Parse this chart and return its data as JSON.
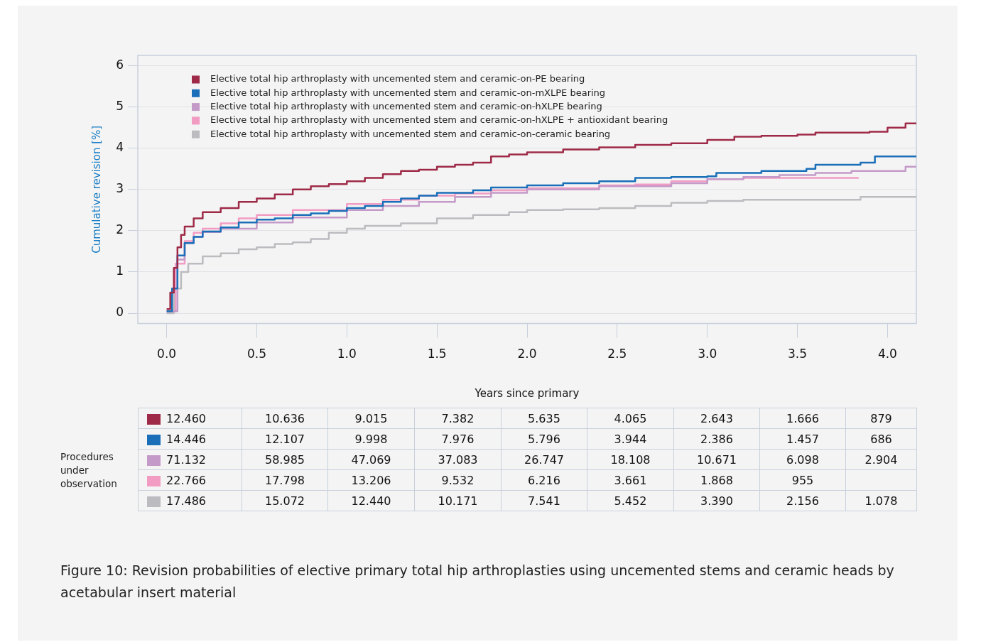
{
  "chart_data": {
    "type": "step",
    "title": "Figure 10: Revision probabilities of elective primary total hip arthroplasties using uncemented stems and ceramic heads by acetabular insert material",
    "xlabel": "Years since primary",
    "ylabel": "Cumulative revision [%]",
    "xlim": [
      -0.16,
      4.16
    ],
    "ylim": [
      -0.25,
      6.25
    ],
    "xticks": [
      {
        "value": 0,
        "label": "0.0"
      },
      {
        "value": 0.5,
        "label": "0.5"
      },
      {
        "value": 1,
        "label": "1.0"
      },
      {
        "value": 1.5,
        "label": "1.5"
      },
      {
        "value": 2,
        "label": "2.0"
      },
      {
        "value": 2.5,
        "label": "2.5"
      },
      {
        "value": 3,
        "label": "3.0"
      },
      {
        "value": 3.5,
        "label": "3.5"
      },
      {
        "value": 4,
        "label": "4.0"
      }
    ],
    "yticks": [
      0,
      1,
      2,
      3,
      4,
      5,
      6
    ],
    "grid": "y",
    "legend": "top left",
    "marker": "none",
    "line_style": "solid",
    "series": [
      {
        "name": "Elective total hip arthroplasty with uncemented stem and ceramic-on-PE bearing",
        "color": "#9e2a47",
        "x": [
          0,
          0.02,
          0.04,
          0.06,
          0.08,
          0.1,
          0.15,
          0.2,
          0.3,
          0.4,
          0.5,
          0.6,
          0.7,
          0.8,
          0.9,
          1.0,
          1.1,
          1.2,
          1.3,
          1.4,
          1.5,
          1.6,
          1.7,
          1.8,
          1.9,
          2.0,
          2.2,
          2.4,
          2.6,
          2.8,
          3.0,
          3.15,
          3.3,
          3.5,
          3.6,
          3.9,
          4.0,
          4.1,
          4.16
        ],
        "values": [
          0.1,
          0.5,
          1.1,
          1.6,
          1.9,
          2.1,
          2.3,
          2.45,
          2.55,
          2.7,
          2.78,
          2.88,
          3.0,
          3.08,
          3.13,
          3.2,
          3.28,
          3.37,
          3.45,
          3.48,
          3.55,
          3.6,
          3.65,
          3.8,
          3.85,
          3.9,
          3.97,
          4.02,
          4.08,
          4.12,
          4.2,
          4.28,
          4.3,
          4.33,
          4.38,
          4.4,
          4.5,
          4.6,
          4.6
        ]
      },
      {
        "name": "Elective total hip arthroplasty with uncemented stem and ceramic-on-mXLPE bearing",
        "color": "#1a6fb8",
        "x": [
          0,
          0.03,
          0.06,
          0.1,
          0.15,
          0.2,
          0.3,
          0.4,
          0.5,
          0.6,
          0.7,
          0.8,
          0.9,
          1.0,
          1.1,
          1.2,
          1.3,
          1.4,
          1.5,
          1.7,
          1.8,
          2.0,
          2.2,
          2.4,
          2.6,
          2.8,
          3.0,
          3.05,
          3.3,
          3.55,
          3.6,
          3.85,
          3.93,
          4.16
        ],
        "values": [
          0.05,
          0.6,
          1.4,
          1.7,
          1.85,
          1.98,
          2.08,
          2.2,
          2.27,
          2.3,
          2.38,
          2.42,
          2.48,
          2.55,
          2.6,
          2.7,
          2.78,
          2.85,
          2.92,
          2.98,
          3.05,
          3.1,
          3.15,
          3.2,
          3.28,
          3.3,
          3.32,
          3.4,
          3.45,
          3.5,
          3.6,
          3.65,
          3.8,
          3.8
        ]
      },
      {
        "name": "Elective total hip arthroplasty with uncemented stem and ceramic-on-hXLPE bearing",
        "color": "#c49ac8",
        "x": [
          0,
          0.06,
          0.1,
          0.15,
          0.2,
          0.3,
          0.5,
          0.7,
          1.0,
          1.2,
          1.4,
          1.6,
          1.8,
          2.0,
          2.4,
          2.8,
          3.0,
          3.2,
          3.4,
          3.6,
          3.8,
          4.05,
          4.1,
          4.16
        ],
        "values": [
          0.05,
          1.3,
          1.7,
          1.85,
          1.97,
          2.05,
          2.2,
          2.32,
          2.5,
          2.6,
          2.7,
          2.82,
          2.92,
          3.0,
          3.08,
          3.15,
          3.25,
          3.3,
          3.35,
          3.4,
          3.45,
          3.45,
          3.55,
          3.55
        ]
      },
      {
        "name": "Elective total hip arthroplasty with uncemented stem and ceramic-on-hXLPE + antioxidant bearing",
        "color": "#f29cc4",
        "x": [
          0,
          0.05,
          0.1,
          0.15,
          0.2,
          0.3,
          0.4,
          0.5,
          0.7,
          1.0,
          1.2,
          1.4,
          1.6,
          1.8,
          2.0,
          2.4,
          2.6,
          2.8,
          3.0,
          3.2,
          3.84
        ],
        "values": [
          0.05,
          1.2,
          1.75,
          1.95,
          2.05,
          2.18,
          2.3,
          2.38,
          2.5,
          2.65,
          2.75,
          2.85,
          2.9,
          2.98,
          3.03,
          3.1,
          3.12,
          3.2,
          3.25,
          3.28,
          3.28
        ]
      },
      {
        "name": "Elective total hip arthroplasty with uncemented stem and ceramic-on-ceramic bearing",
        "color": "#bcbcc0",
        "x": [
          0,
          0.04,
          0.08,
          0.12,
          0.2,
          0.3,
          0.4,
          0.5,
          0.6,
          0.7,
          0.8,
          0.9,
          1.0,
          1.1,
          1.3,
          1.5,
          1.7,
          1.9,
          2.0,
          2.2,
          2.4,
          2.6,
          2.8,
          3.0,
          3.2,
          3.8,
          3.85,
          4.16
        ],
        "values": [
          0,
          0.6,
          1.0,
          1.2,
          1.38,
          1.45,
          1.55,
          1.6,
          1.68,
          1.72,
          1.8,
          1.95,
          2.05,
          2.12,
          2.18,
          2.3,
          2.38,
          2.45,
          2.5,
          2.52,
          2.55,
          2.6,
          2.68,
          2.72,
          2.75,
          2.75,
          2.82,
          2.82
        ]
      }
    ],
    "annotations": [
      "Procedures under observation",
      "12.460",
      "10.636",
      "9.015",
      "7.382",
      "5.635",
      "4.065",
      "2.643",
      "1.666",
      "879",
      "14.446",
      "12.107",
      "9.998",
      "7.976",
      "5.796",
      "3.944",
      "2.386",
      "1.457",
      "686",
      "71.132",
      "58.985",
      "47.069",
      "37.083",
      "26.747",
      "18.108",
      "10.671",
      "6.098",
      "2.904",
      "22.766",
      "17.798",
      "13.206",
      "9.532",
      "6.216",
      "3.661",
      "1.868",
      "955",
      "17.486",
      "15.072",
      "12.440",
      "10.171",
      "7.541",
      "5.452",
      "3.390",
      "2.156",
      "1.078"
    ]
  }
}
